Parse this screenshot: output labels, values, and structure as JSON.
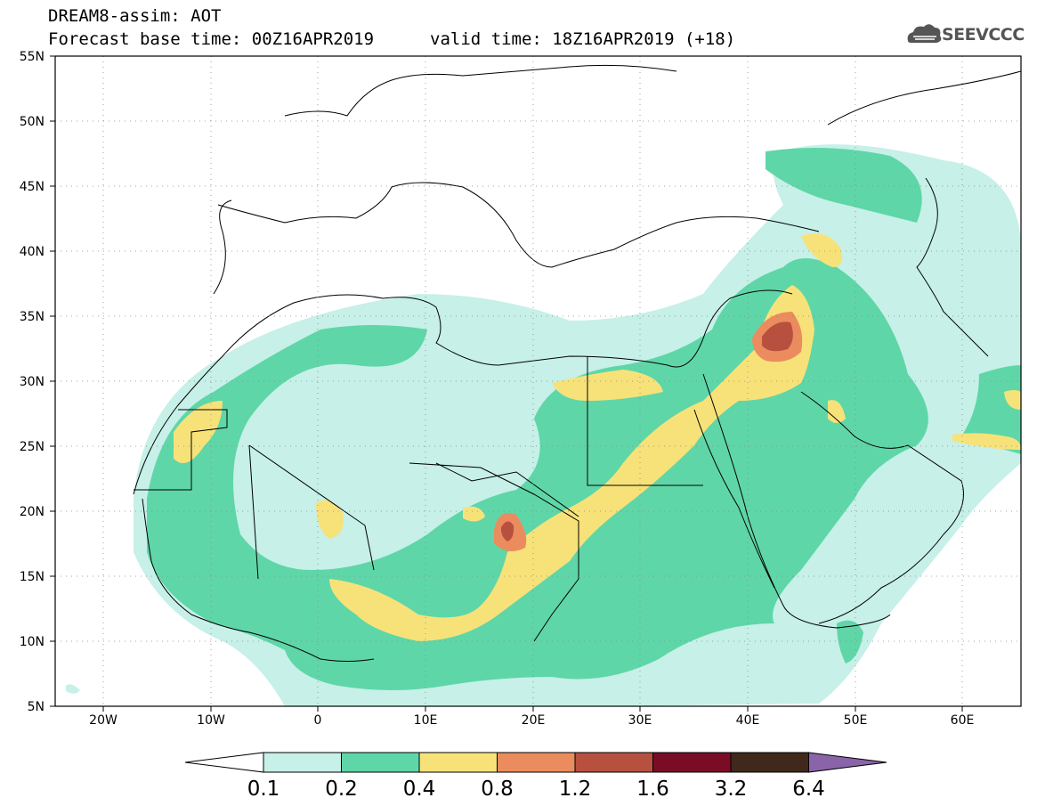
{
  "header": {
    "title": "DREAM8-assim: AOT",
    "base_time": "Forecast base time: 00Z16APR2019",
    "valid_time": "valid time: 18Z16APR2019 (+18)",
    "logo_text": "SEEVCCC"
  },
  "map": {
    "lon_range": [
      -25,
      65
    ],
    "lat_range": [
      5,
      55
    ],
    "lat_ticks": [
      "5N",
      "10N",
      "15N",
      "20N",
      "25N",
      "30N",
      "35N",
      "40N",
      "45N",
      "50N",
      "55N"
    ],
    "lon_ticks": [
      "20W",
      "10W",
      "0",
      "10E",
      "20E",
      "30E",
      "40E",
      "50E",
      "60E"
    ],
    "grid": "dotted"
  },
  "colorbar": {
    "labels": [
      "0.1",
      "0.2",
      "0.4",
      "0.8",
      "1.2",
      "1.6",
      "3.2",
      "6.4"
    ],
    "colors": [
      "#ffffff",
      "#c6f0e8",
      "#5fd6a8",
      "#f7e27a",
      "#eb8c5e",
      "#b8503f",
      "#7a0d25",
      "#40281a",
      "#8a64a8"
    ]
  }
}
